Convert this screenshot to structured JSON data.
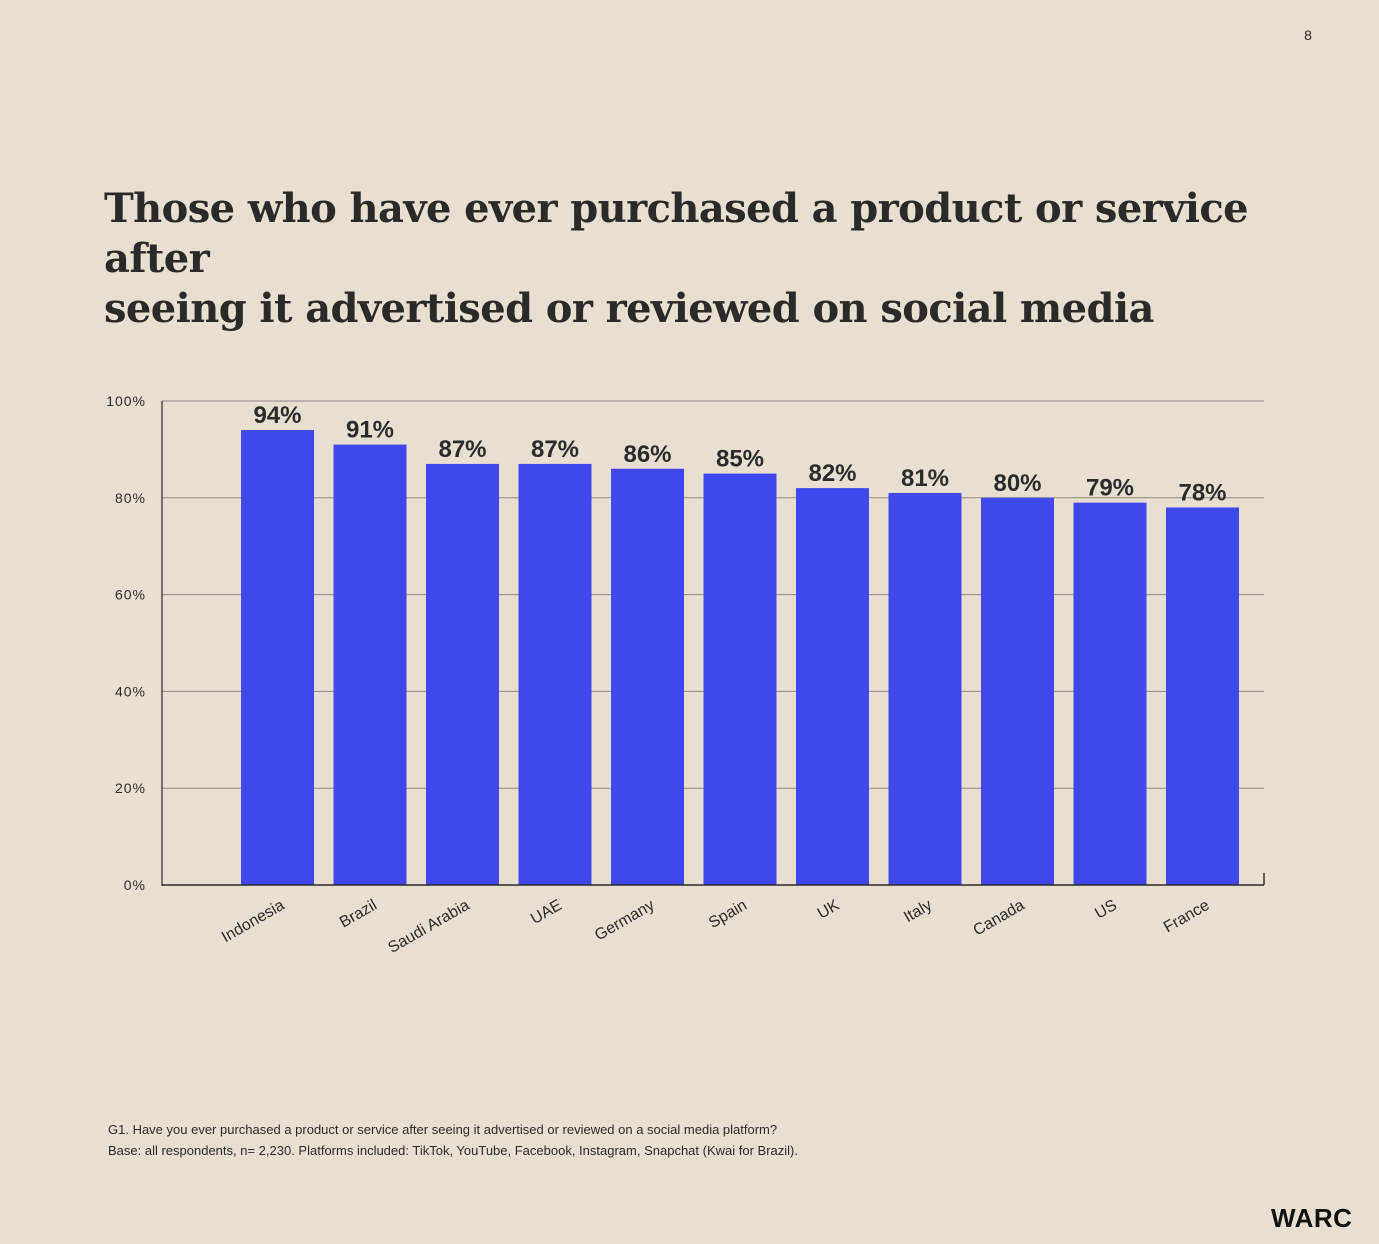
{
  "page_number": "8",
  "title_lines": [
    "Those who have ever purchased a product or service after",
    "seeing it advertised or reviewed on social media"
  ],
  "footnote": {
    "line1": "G1. Have you ever purchased a product or service after seeing it advertised or reviewed on a social media platform?",
    "line2": "Base: all respondents, n= 2,230. Platforms included: TikTok, YouTube, Facebook, Instagram, Snapchat (Kwai for Brazil)."
  },
  "brand": "WARC",
  "colors": {
    "background": "#e9dfd1",
    "bar": "#3f48ed",
    "grid": "#8f8a86",
    "text": "#2c2b2b"
  },
  "chart_data": {
    "type": "bar",
    "title": "Those who have ever purchased a product or service after seeing it advertised or reviewed on social media",
    "categories": [
      "Indonesia",
      "Brazil",
      "Saudi Arabia",
      "UAE",
      "Germany",
      "Spain",
      "UK",
      "Italy",
      "Canada",
      "US",
      "France"
    ],
    "values": [
      94,
      91,
      87,
      87,
      86,
      85,
      82,
      81,
      80,
      79,
      78
    ],
    "data_labels": [
      "94%",
      "91%",
      "87%",
      "87%",
      "86%",
      "85%",
      "82%",
      "81%",
      "80%",
      "79%",
      "78%"
    ],
    "y_ticks": [
      0,
      20,
      40,
      60,
      80,
      100
    ],
    "y_tick_labels": [
      "0%",
      "20%",
      "40%",
      "60%",
      "80%",
      "100%"
    ],
    "ylim": [
      0,
      100
    ],
    "xlabel": "",
    "ylabel": "",
    "grid": true,
    "legend": "none"
  }
}
